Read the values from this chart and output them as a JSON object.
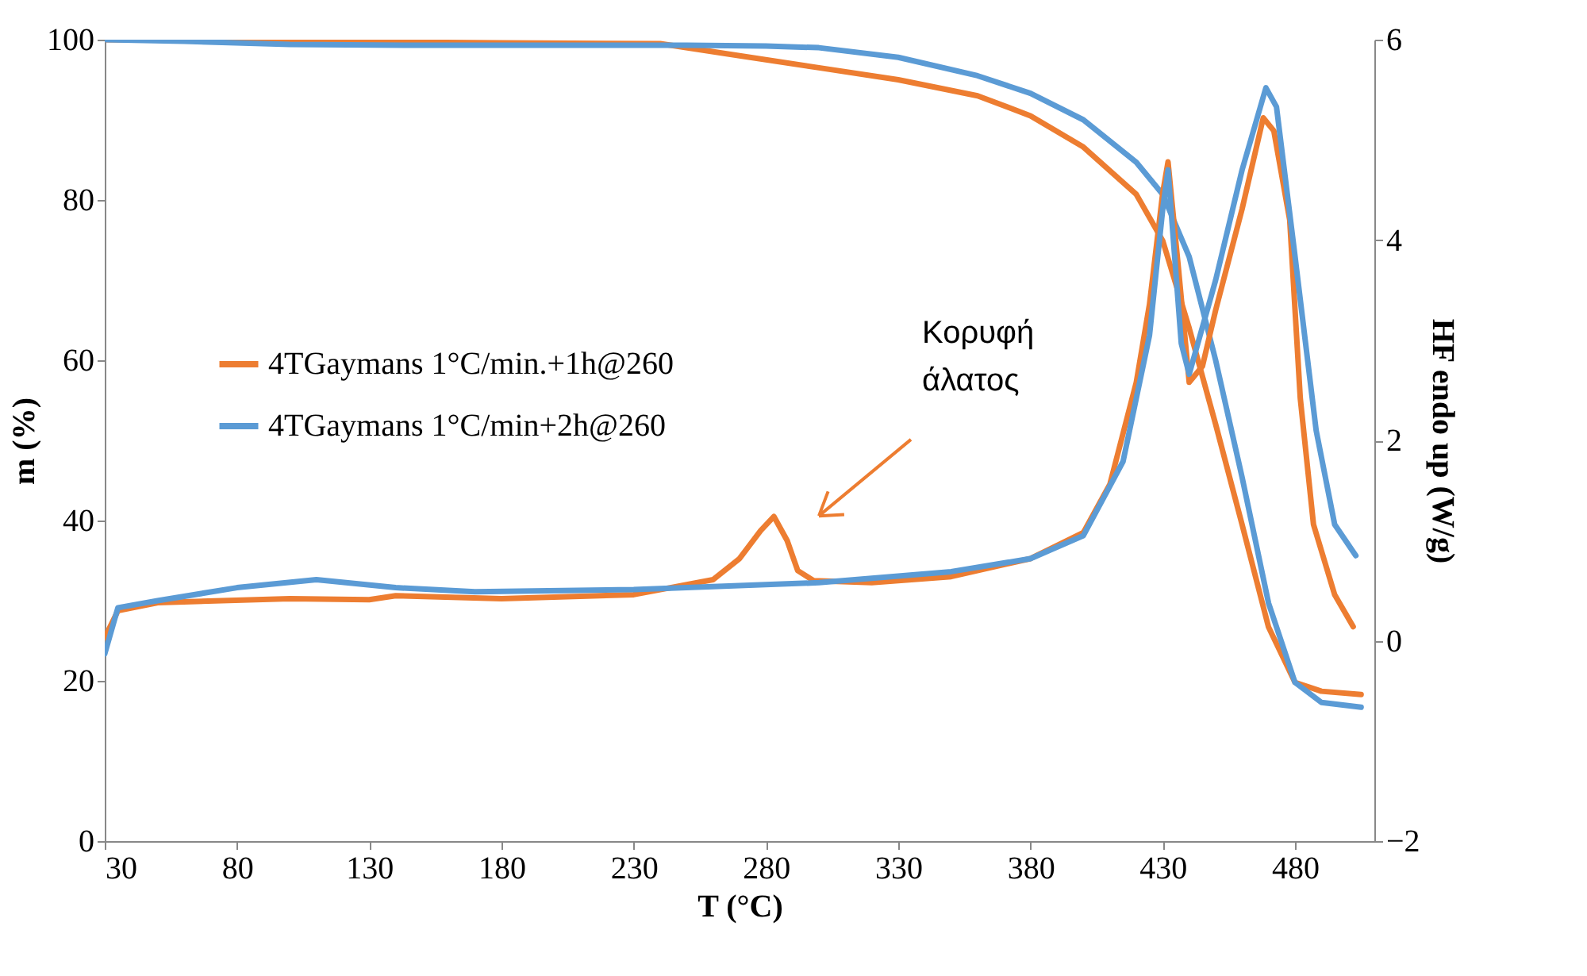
{
  "chart_data": {
    "type": "line",
    "xlabel": "T (°C)",
    "ylabel": "m (%)",
    "y2label": "HF endo up (W/g)",
    "xlim": [
      30,
      510
    ],
    "xticks": [
      30,
      80,
      130,
      180,
      230,
      280,
      330,
      380,
      430,
      480
    ],
    "ylim": [
      0,
      100
    ],
    "yticks": [
      0,
      20,
      40,
      60,
      80,
      100
    ],
    "y2lim": [
      -2,
      6
    ],
    "y2ticks": [
      -2,
      0,
      2,
      4,
      6
    ],
    "grid": false,
    "legend": "left",
    "marker": "none",
    "line_style": "solid",
    "annotations": [
      "Κορυφή\nάλατος"
    ],
    "series": [
      {
        "name": "4TGaymans 1°C/min.+1h@260",
        "color": "#ed7d31",
        "x": [
          30,
          100,
          180,
          240,
          270,
          300,
          330,
          360,
          380,
          400,
          420,
          430,
          440,
          450,
          460,
          470,
          480,
          490,
          505
        ],
        "values": [
          100,
          99.8,
          99.6,
          99.5,
          98,
          96.5,
          95,
          93,
          90.5,
          86.6,
          80.7,
          74.9,
          64,
          52,
          39.5,
          26.7,
          19.8,
          18.7,
          18.3
        ]
      },
      {
        "name": "4TGaymans 1°C/min+2h@260",
        "color": "#5b9bd5",
        "x": [
          30,
          60,
          100,
          150,
          200,
          250,
          280,
          300,
          330,
          360,
          380,
          400,
          420,
          430,
          440,
          450,
          460,
          470,
          480,
          490,
          505
        ],
        "values": [
          100,
          99.8,
          99.4,
          99.3,
          99.3,
          99.3,
          99.2,
          99,
          97.8,
          95.5,
          93.3,
          90,
          84.7,
          80.7,
          72.9,
          60,
          45.4,
          29.7,
          19.8,
          17.3,
          16.7
        ]
      },
      {
        "color": "#ed7d31",
        "axis": "y2",
        "x": [
          30,
          35,
          50,
          100,
          130,
          140,
          180,
          230,
          260,
          270,
          278,
          283,
          288,
          292,
          298,
          320,
          350,
          380,
          400,
          410,
          420,
          425,
          430,
          432,
          436,
          440,
          445,
          450,
          460,
          468,
          472,
          478,
          482,
          487,
          495,
          502
        ],
        "values": [
          0.03,
          0.3,
          0.38,
          0.42,
          0.41,
          0.45,
          0.42,
          0.46,
          0.61,
          0.82,
          1.1,
          1.24,
          1.0,
          0.7,
          0.6,
          0.58,
          0.64,
          0.82,
          1.08,
          1.56,
          2.58,
          3.36,
          4.47,
          4.78,
          3.7,
          2.58,
          2.74,
          3.3,
          4.31,
          5.22,
          5.09,
          4.2,
          2.42,
          1.16,
          0.46,
          0.14
        ]
      },
      {
        "color": "#5b9bd5",
        "axis": "y2",
        "x": [
          30,
          35,
          50,
          80,
          110,
          140,
          170,
          230,
          300,
          350,
          380,
          400,
          415,
          425,
          430,
          432,
          437,
          440,
          450,
          460,
          469,
          473,
          480,
          488,
          495,
          503
        ],
        "values": [
          -0.13,
          0.33,
          0.4,
          0.53,
          0.61,
          0.53,
          0.49,
          0.51,
          0.58,
          0.69,
          0.82,
          1.05,
          1.79,
          3.05,
          4.31,
          4.7,
          2.97,
          2.66,
          3.6,
          4.7,
          5.52,
          5.33,
          3.84,
          2.1,
          1.16,
          0.85
        ]
      }
    ]
  }
}
